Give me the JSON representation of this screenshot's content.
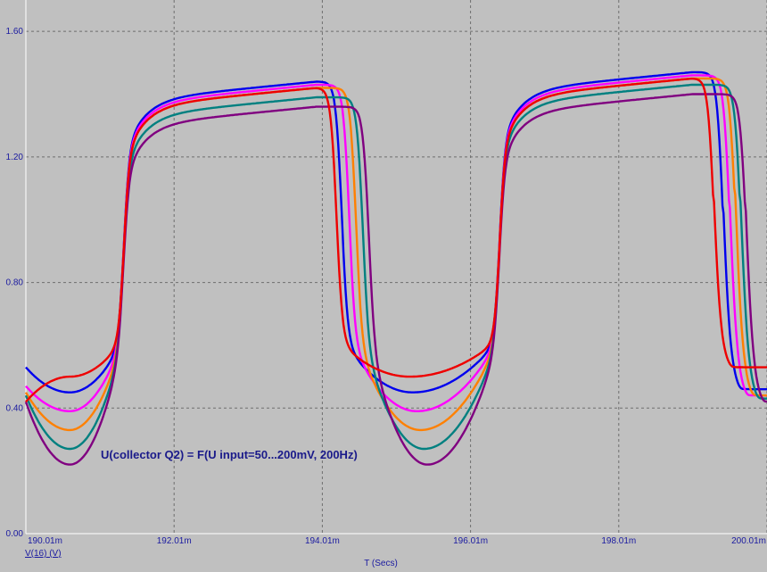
{
  "chart_data": {
    "type": "line",
    "title": "",
    "annotation": "U(collector Q2) = F(U input=50...200mV, 200Hz)",
    "xlabel": "T (Secs)",
    "trace_label": "V(16) (V)",
    "xlim": [
      0.19001,
      0.20001
    ],
    "ylim": [
      0,
      1.7
    ],
    "x_ticks": [
      0.19001,
      0.19201,
      0.19401,
      0.19601,
      0.19801,
      0.20001
    ],
    "x_tick_labels": [
      "190.01m",
      "192.01m",
      "194.01m",
      "196.01m",
      "198.01m",
      "200.01m"
    ],
    "y_ticks": [
      0,
      0.4,
      0.8,
      1.2,
      1.6
    ],
    "y_tick_labels": [
      "0.00",
      "0.40",
      "0.80",
      "1.20",
      "1.60"
    ],
    "grid": true,
    "series": [
      {
        "color": "#0000ee",
        "lowMin": 0.45,
        "high1": 1.44,
        "high2": 1.47,
        "t1": 0.19427,
        "t2": 0.19941,
        "lowStart": 0.53,
        "lowEnd": 0.46
      },
      {
        "color": "#ff00ff",
        "lowMin": 0.39,
        "high1": 1.43,
        "high2": 1.46,
        "t1": 0.19437,
        "t2": 0.1995,
        "lowStart": 0.47,
        "lowEnd": 0.44
      },
      {
        "color": "#ff8000",
        "lowMin": 0.33,
        "high1": 1.42,
        "high2": 1.45,
        "t1": 0.19446,
        "t2": 0.19958,
        "lowStart": 0.45,
        "lowEnd": 0.44
      },
      {
        "color": "#008080",
        "lowMin": 0.27,
        "high1": 1.39,
        "high2": 1.43,
        "t1": 0.19455,
        "t2": 0.19965,
        "lowStart": 0.44,
        "lowEnd": 0.43
      },
      {
        "color": "#800080",
        "lowMin": 0.22,
        "high1": 1.36,
        "high2": 1.4,
        "t1": 0.19463,
        "t2": 0.19972,
        "lowStart": 0.42,
        "lowEnd": 0.42
      },
      {
        "color": "#ee0000",
        "lowMin": 0.5,
        "high1": 1.42,
        "high2": 1.45,
        "t1": 0.1942,
        "t2": 0.19929,
        "lowStart": 0.42,
        "lowEnd": 0.53
      }
    ]
  }
}
